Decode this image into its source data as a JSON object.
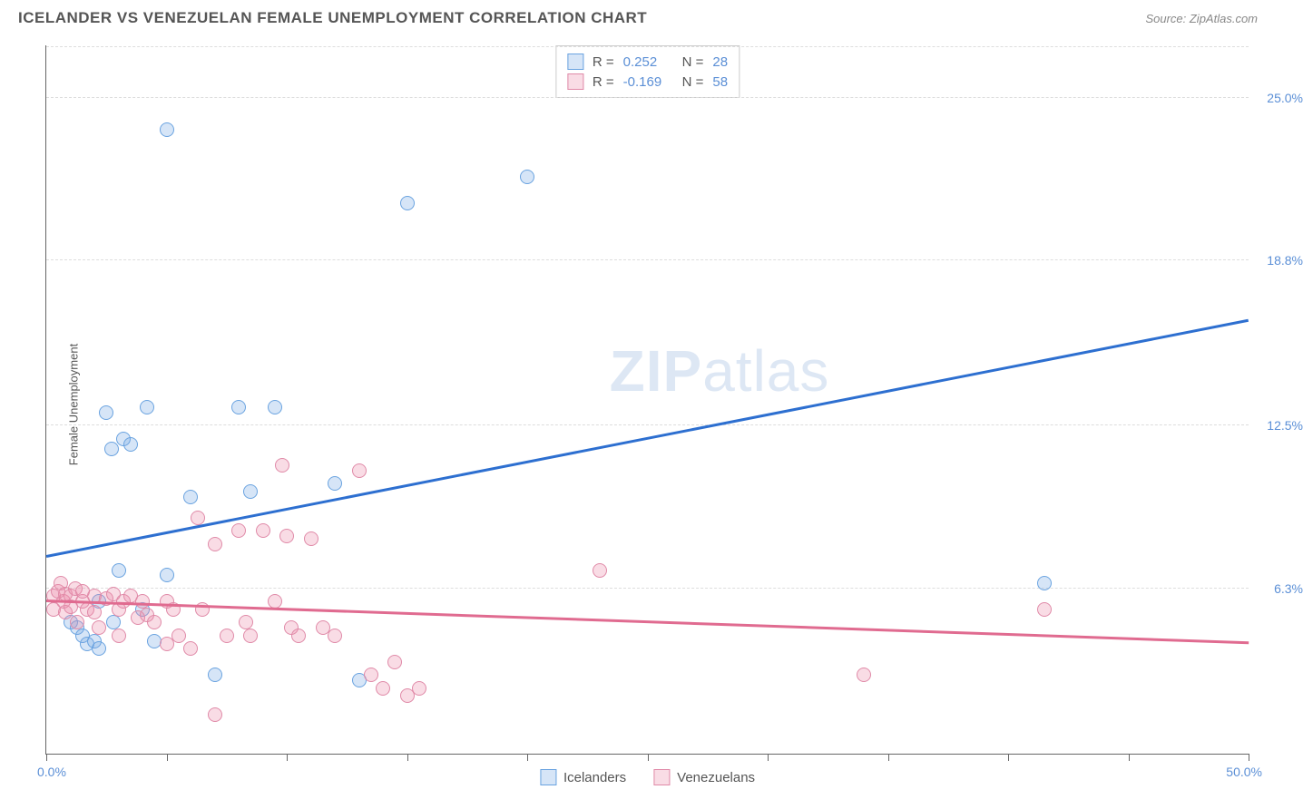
{
  "header": {
    "title": "ICELANDER VS VENEZUELAN FEMALE UNEMPLOYMENT CORRELATION CHART",
    "source": "Source: ZipAtlas.com"
  },
  "chart": {
    "type": "scatter",
    "ylabel": "Female Unemployment",
    "xlim": [
      0,
      50
    ],
    "ylim": [
      0,
      27
    ],
    "xlabel_min": "0.0%",
    "xlabel_max": "50.0%",
    "ytick_positions": [
      6.3,
      12.5,
      18.8,
      25.0
    ],
    "ytick_labels": [
      "6.3%",
      "12.5%",
      "18.8%",
      "25.0%"
    ],
    "xtick_positions": [
      0,
      5,
      10,
      15,
      20,
      25,
      30,
      35,
      40,
      45,
      50
    ],
    "grid_color": "#dddddd",
    "background_color": "#ffffff",
    "axis_color": "#666666",
    "watermark_zip": "ZIP",
    "watermark_atlas": "atlas",
    "marker_radius": 8,
    "marker_stroke_width": 1.5,
    "marker_fill_opacity": 0.25,
    "series": [
      {
        "name": "Icelanders",
        "color_fill": "rgba(120,170,230,0.30)",
        "color_stroke": "#6aa3e0",
        "R_label": "R =",
        "R": "0.252",
        "N_label": "N =",
        "N": "28",
        "trend": {
          "x0": 0,
          "y0": 7.5,
          "x1": 50,
          "y1": 16.5,
          "color": "#2d6fd0",
          "width": 2.5
        },
        "points": [
          [
            1.0,
            5.0
          ],
          [
            1.3,
            4.8
          ],
          [
            1.5,
            4.5
          ],
          [
            1.7,
            4.2
          ],
          [
            2.0,
            4.3
          ],
          [
            2.2,
            5.8
          ],
          [
            2.2,
            4.0
          ],
          [
            2.5,
            13.0
          ],
          [
            2.7,
            11.6
          ],
          [
            3.2,
            12.0
          ],
          [
            3.0,
            7.0
          ],
          [
            3.5,
            11.8
          ],
          [
            4.0,
            5.5
          ],
          [
            4.2,
            13.2
          ],
          [
            4.5,
            4.3
          ],
          [
            5.0,
            6.8
          ],
          [
            5.0,
            23.8
          ],
          [
            6.0,
            9.8
          ],
          [
            7.0,
            3.0
          ],
          [
            8.0,
            13.2
          ],
          [
            8.5,
            10.0
          ],
          [
            9.5,
            13.2
          ],
          [
            12.0,
            10.3
          ],
          [
            13.0,
            2.8
          ],
          [
            15.0,
            21.0
          ],
          [
            20.0,
            22.0
          ],
          [
            41.5,
            6.5
          ],
          [
            2.8,
            5.0
          ]
        ]
      },
      {
        "name": "Venezuelans",
        "color_fill": "rgba(235,140,170,0.30)",
        "color_stroke": "#e08aa8",
        "R_label": "R =",
        "R": "-0.169",
        "N_label": "N =",
        "N": "58",
        "trend": {
          "x0": 0,
          "y0": 5.8,
          "x1": 50,
          "y1": 4.2,
          "color": "#e06b90",
          "width": 2.5
        },
        "points": [
          [
            0.3,
            6.0
          ],
          [
            0.3,
            5.5
          ],
          [
            0.5,
            6.2
          ],
          [
            0.6,
            6.5
          ],
          [
            0.7,
            5.8
          ],
          [
            0.8,
            6.1
          ],
          [
            0.8,
            5.4
          ],
          [
            1.0,
            6.0
          ],
          [
            1.0,
            5.6
          ],
          [
            1.2,
            6.3
          ],
          [
            1.3,
            5.0
          ],
          [
            1.5,
            5.8
          ],
          [
            1.5,
            6.2
          ],
          [
            1.7,
            5.5
          ],
          [
            2.0,
            6.0
          ],
          [
            2.0,
            5.4
          ],
          [
            2.2,
            4.8
          ],
          [
            2.5,
            5.9
          ],
          [
            2.8,
            6.1
          ],
          [
            3.0,
            5.5
          ],
          [
            3.0,
            4.5
          ],
          [
            3.2,
            5.8
          ],
          [
            3.5,
            6.0
          ],
          [
            3.8,
            5.2
          ],
          [
            4.0,
            5.8
          ],
          [
            4.2,
            5.3
          ],
          [
            4.5,
            5.0
          ],
          [
            5.0,
            5.8
          ],
          [
            5.0,
            4.2
          ],
          [
            5.3,
            5.5
          ],
          [
            5.5,
            4.5
          ],
          [
            6.0,
            4.0
          ],
          [
            6.3,
            9.0
          ],
          [
            6.5,
            5.5
          ],
          [
            7.0,
            8.0
          ],
          [
            7.0,
            1.5
          ],
          [
            7.5,
            4.5
          ],
          [
            8.0,
            8.5
          ],
          [
            8.3,
            5.0
          ],
          [
            8.5,
            4.5
          ],
          [
            9.0,
            8.5
          ],
          [
            9.5,
            5.8
          ],
          [
            9.8,
            11.0
          ],
          [
            10.0,
            8.3
          ],
          [
            10.2,
            4.8
          ],
          [
            10.5,
            4.5
          ],
          [
            11.0,
            8.2
          ],
          [
            11.5,
            4.8
          ],
          [
            12.0,
            4.5
          ],
          [
            13.0,
            10.8
          ],
          [
            13.5,
            3.0
          ],
          [
            14.0,
            2.5
          ],
          [
            14.5,
            3.5
          ],
          [
            15.0,
            2.2
          ],
          [
            15.5,
            2.5
          ],
          [
            23.0,
            7.0
          ],
          [
            34.0,
            3.0
          ],
          [
            41.5,
            5.5
          ]
        ]
      }
    ]
  },
  "bottom_legend": {
    "items": [
      "Icelanders",
      "Venezuelans"
    ]
  }
}
